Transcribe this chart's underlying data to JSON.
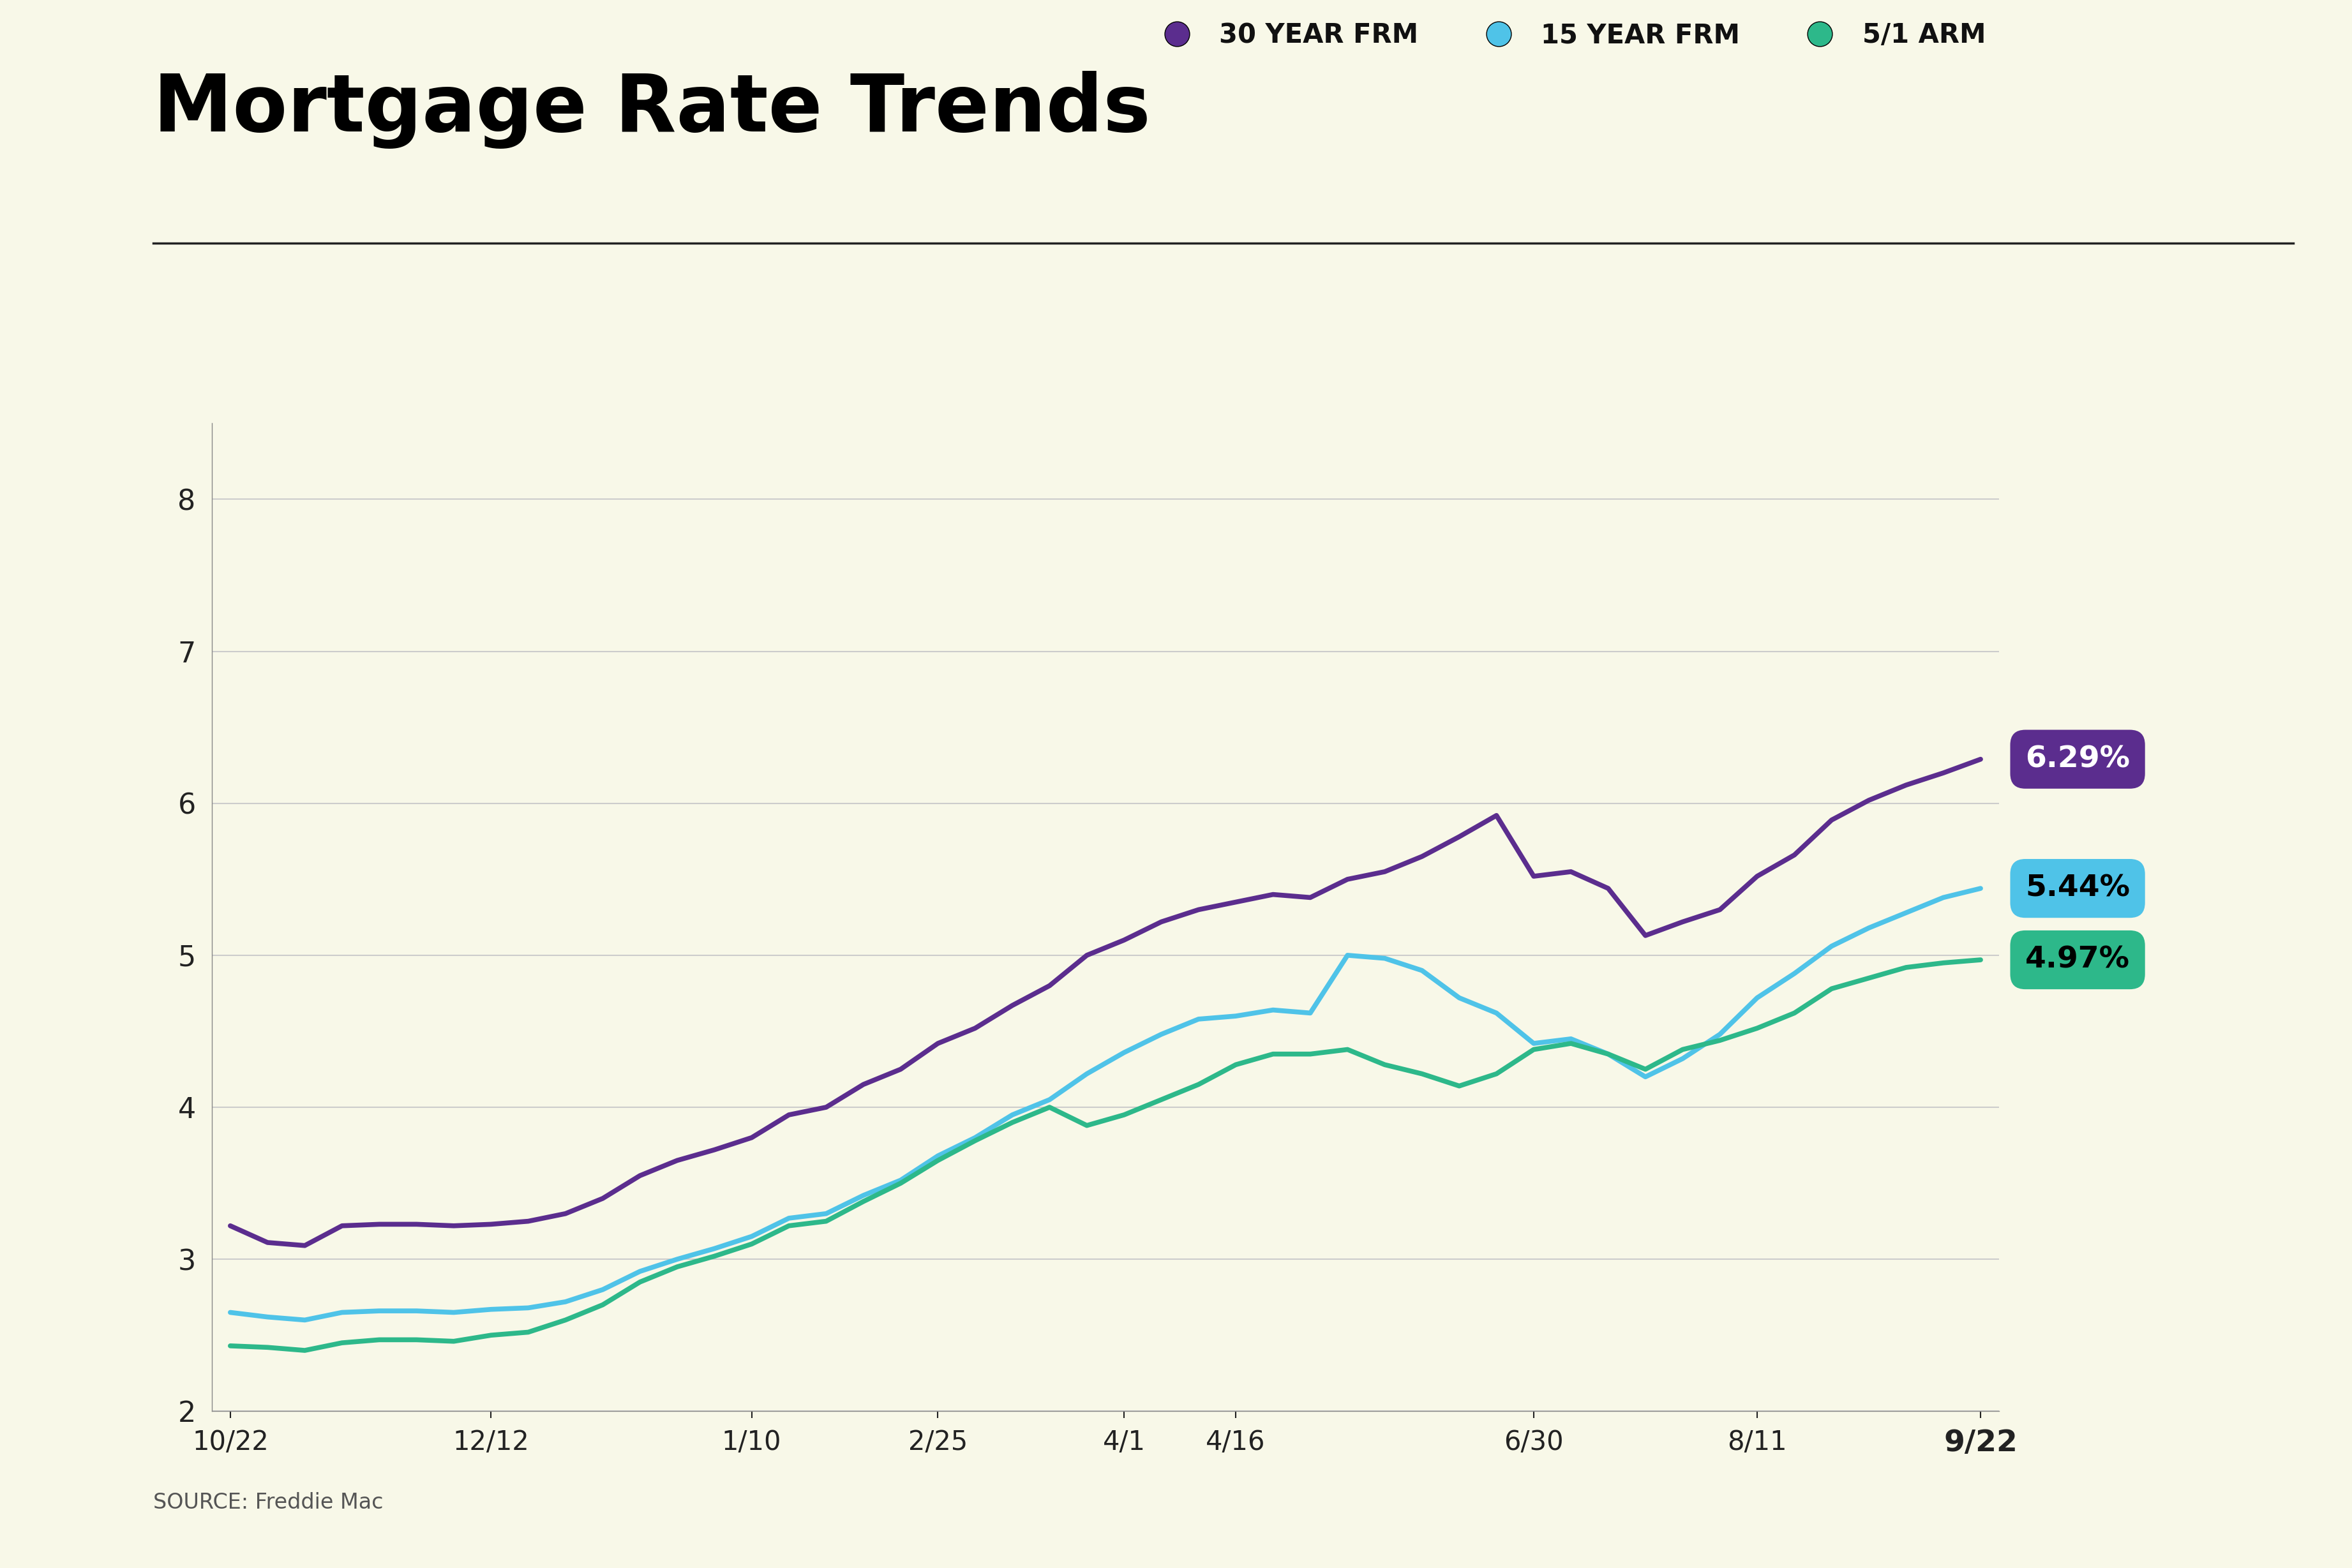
{
  "title": "Mortgage Rate Trends",
  "background_color": "#F8F8E8",
  "source_text": "SOURCE: Freddie Mac",
  "ylim": [
    2,
    8.5
  ],
  "yticks": [
    2,
    3,
    4,
    5,
    6,
    7,
    8
  ],
  "x_labels": [
    "10/22",
    "12/12",
    "1/10",
    "2/25",
    "4/1",
    "4/16",
    "6/30",
    "8/11",
    "9/22"
  ],
  "series": {
    "frm30": {
      "label": "30 YEAR FRM",
      "color": "#5B2D8E",
      "final_value": "6.29%",
      "badge_color": "#5B2D8E",
      "badge_text_color": "#ffffff"
    },
    "frm15": {
      "label": "15 YEAR FRM",
      "color": "#4FC3E8",
      "final_value": "5.44%",
      "badge_color": "#4FC3E8",
      "badge_text_color": "#000000"
    },
    "arm51": {
      "label": "5/1 ARM",
      "color": "#2DB88A",
      "final_value": "4.97%",
      "badge_color": "#2DB88A",
      "badge_text_color": "#000000"
    }
  },
  "frm30_x": [
    0,
    1,
    2,
    3,
    4,
    5,
    6,
    7,
    8,
    9,
    10,
    11,
    12,
    13,
    14,
    15,
    16,
    17,
    18,
    19,
    20,
    21,
    22,
    23,
    24,
    25,
    26,
    27,
    28,
    29,
    30,
    31,
    32,
    33,
    34,
    35,
    36,
    37,
    38,
    39,
    40,
    41,
    42,
    43,
    44,
    45,
    46,
    47
  ],
  "frm30_y": [
    3.22,
    3.11,
    3.09,
    3.22,
    3.23,
    3.23,
    3.22,
    3.23,
    3.25,
    3.3,
    3.4,
    3.55,
    3.65,
    3.72,
    3.8,
    3.95,
    4.0,
    4.15,
    4.25,
    4.42,
    4.52,
    4.67,
    4.8,
    5.0,
    5.1,
    5.22,
    5.3,
    5.35,
    5.4,
    5.38,
    5.5,
    5.55,
    5.65,
    5.78,
    5.92,
    5.52,
    5.55,
    5.44,
    5.13,
    5.22,
    5.3,
    5.52,
    5.66,
    5.89,
    6.02,
    6.12,
    6.2,
    6.29
  ],
  "frm15_x": [
    0,
    1,
    2,
    3,
    4,
    5,
    6,
    7,
    8,
    9,
    10,
    11,
    12,
    13,
    14,
    15,
    16,
    17,
    18,
    19,
    20,
    21,
    22,
    23,
    24,
    25,
    26,
    27,
    28,
    29,
    30,
    31,
    32,
    33,
    34,
    35,
    36,
    37,
    38,
    39,
    40,
    41,
    42,
    43,
    44,
    45,
    46,
    47
  ],
  "frm15_y": [
    2.65,
    2.62,
    2.6,
    2.65,
    2.66,
    2.66,
    2.65,
    2.67,
    2.68,
    2.72,
    2.8,
    2.92,
    3.0,
    3.07,
    3.15,
    3.27,
    3.3,
    3.42,
    3.52,
    3.68,
    3.8,
    3.95,
    4.05,
    4.22,
    4.36,
    4.48,
    4.58,
    4.6,
    4.64,
    4.62,
    5.0,
    4.98,
    4.9,
    4.72,
    4.62,
    4.42,
    4.45,
    4.35,
    4.2,
    4.32,
    4.48,
    4.72,
    4.88,
    5.06,
    5.18,
    5.28,
    5.38,
    5.44
  ],
  "arm51_x": [
    0,
    1,
    2,
    3,
    4,
    5,
    6,
    7,
    8,
    9,
    10,
    11,
    12,
    13,
    14,
    15,
    16,
    17,
    18,
    19,
    20,
    21,
    22,
    23,
    24,
    25,
    26,
    27,
    28,
    29,
    30,
    31,
    32,
    33,
    34,
    35,
    36,
    37,
    38,
    39,
    40,
    41,
    42,
    43,
    44,
    45,
    46,
    47
  ],
  "arm51_y": [
    2.43,
    2.42,
    2.4,
    2.45,
    2.47,
    2.47,
    2.46,
    2.5,
    2.52,
    2.6,
    2.7,
    2.85,
    2.95,
    3.02,
    3.1,
    3.22,
    3.25,
    3.38,
    3.5,
    3.65,
    3.78,
    3.9,
    4.0,
    3.88,
    3.95,
    4.05,
    4.15,
    4.28,
    4.35,
    4.35,
    4.38,
    4.28,
    4.22,
    4.14,
    4.22,
    4.38,
    4.42,
    4.35,
    4.25,
    4.38,
    4.44,
    4.52,
    4.62,
    4.78,
    4.85,
    4.92,
    4.95,
    4.97
  ],
  "x_tick_positions": [
    0,
    7,
    14,
    19,
    24,
    27,
    35,
    41,
    47
  ],
  "line_width": 5.5
}
